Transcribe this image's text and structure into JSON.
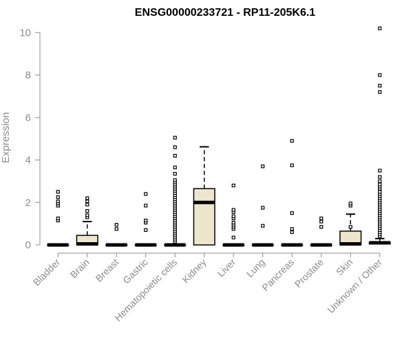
{
  "chart_data": {
    "type": "boxplot",
    "title": "ENSG00000233721 - RP11-205K6.1",
    "ylabel": "Expression",
    "xlabel": "",
    "ylim": [
      0,
      10.4
    ],
    "yticks": [
      0,
      2,
      4,
      6,
      8,
      10
    ],
    "categories": [
      "Bladder",
      "Brain",
      "Breast",
      "Gastric",
      "Hematopoietic cells",
      "Kidney",
      "Liver",
      "Lung",
      "Pancreas",
      "Prostate",
      "Skin",
      "Unknown / Other"
    ],
    "boxes": [
      {
        "q1": 0,
        "median": 0,
        "q3": 0,
        "whisker_low": 0,
        "whisker_high": 0,
        "outliers": [
          1.15,
          1.25,
          1.85,
          1.95,
          2.05,
          2.25,
          2.5
        ]
      },
      {
        "q1": 0,
        "median": 0.05,
        "q3": 0.45,
        "whisker_low": 0,
        "whisker_high": 1.1,
        "outliers": [
          1.3,
          1.4,
          1.6,
          1.9,
          2.05,
          2.2
        ]
      },
      {
        "q1": 0,
        "median": 0,
        "q3": 0,
        "whisker_low": 0,
        "whisker_high": 0,
        "outliers": [
          0.75,
          0.95
        ]
      },
      {
        "q1": 0,
        "median": 0,
        "q3": 0,
        "whisker_low": 0,
        "whisker_high": 0,
        "outliers": [
          0.7,
          1.05,
          1.15,
          1.85,
          2.4
        ]
      },
      {
        "q1": 0,
        "median": 0,
        "q3": 0,
        "whisker_low": 0,
        "whisker_high": 0,
        "outliers": [
          0.15,
          0.25,
          0.35,
          0.45,
          0.55,
          0.65,
          0.75,
          0.85,
          0.95,
          1.05,
          1.15,
          1.25,
          1.35,
          1.45,
          1.55,
          1.65,
          1.75,
          1.85,
          1.95,
          2.05,
          2.15,
          2.25,
          2.35,
          2.45,
          2.55,
          2.65,
          2.75,
          2.85,
          2.95,
          3.05,
          3.35,
          3.65,
          4.2,
          4.6,
          5.05
        ]
      },
      {
        "q1": 0,
        "median": 2.0,
        "q3": 2.65,
        "whisker_low": 0,
        "whisker_high": 4.62,
        "outliers": []
      },
      {
        "q1": 0,
        "median": 0,
        "q3": 0,
        "whisker_low": 0,
        "whisker_high": 0,
        "outliers": [
          0.35,
          0.75,
          0.85,
          0.95,
          1.05,
          1.25,
          1.35,
          1.55,
          1.65,
          2.8
        ]
      },
      {
        "q1": 0,
        "median": 0,
        "q3": 0,
        "whisker_low": 0,
        "whisker_high": 0,
        "outliers": [
          0.9,
          1.75,
          3.7
        ]
      },
      {
        "q1": 0,
        "median": 0,
        "q3": 0,
        "whisker_low": 0,
        "whisker_high": 0,
        "outliers": [
          0.6,
          0.75,
          1.5,
          3.75,
          4.9
        ]
      },
      {
        "q1": 0,
        "median": 0,
        "q3": 0,
        "whisker_low": 0,
        "whisker_high": 0,
        "outliers": [
          0.85,
          1.1,
          1.25
        ]
      },
      {
        "q1": 0,
        "median": 0.05,
        "q3": 0.65,
        "whisker_low": 0,
        "whisker_high": 1.45,
        "outliers": [
          0.85,
          1.85,
          1.95
        ]
      },
      {
        "q1": 0.05,
        "median": 0.1,
        "q3": 0.12,
        "whisker_low": 0,
        "whisker_high": 0.3,
        "outliers": [
          0.4,
          0.5,
          0.6,
          0.7,
          0.8,
          0.9,
          1.0,
          1.1,
          1.2,
          1.3,
          1.4,
          1.5,
          1.6,
          1.7,
          1.8,
          1.9,
          2.0,
          2.1,
          2.2,
          2.3,
          2.4,
          2.5,
          2.65,
          2.75,
          2.85,
          3.0,
          3.2,
          3.5,
          7.2,
          7.5,
          8.0,
          10.2
        ]
      }
    ],
    "box_fill": "#ede6cd",
    "box_stroke": "#000000",
    "axis_color": "#8c8c8c",
    "grid": false,
    "legend": "none"
  }
}
